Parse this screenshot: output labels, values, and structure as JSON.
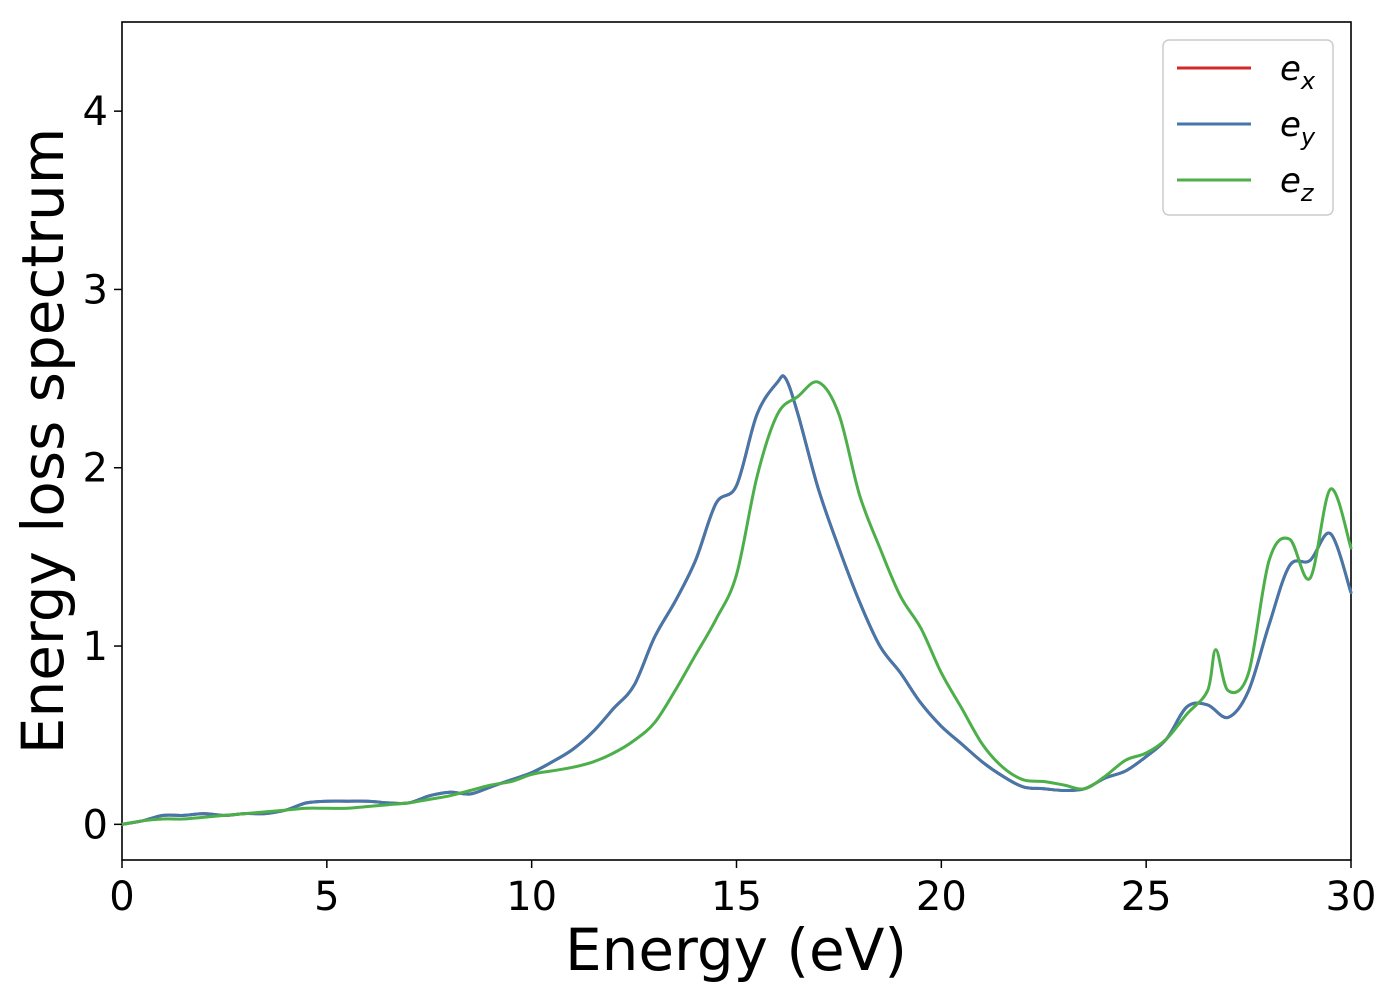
{
  "chart_data": {
    "type": "line",
    "title": "",
    "xlabel": "Energy (eV)",
    "ylabel": "Energy loss spectrum",
    "xlim": [
      0,
      30
    ],
    "ylim": [
      -0.2,
      4.5
    ],
    "xticks": [
      0,
      5,
      10,
      15,
      20,
      25,
      30
    ],
    "yticks": [
      0,
      1,
      2,
      3,
      4
    ],
    "grid": false,
    "legend_position": "top-right",
    "series": [
      {
        "name": "e",
        "name_subscript": "x",
        "color": "#d62728",
        "x": [
          0,
          0.5,
          1,
          1.5,
          2,
          2.5,
          3,
          3.5,
          4,
          4.5,
          5,
          5.5,
          6,
          6.5,
          7,
          7.5,
          8,
          8.5,
          9,
          9.5,
          10,
          10.5,
          11,
          11.5,
          12,
          12.5,
          13,
          13.5,
          14,
          14.5,
          15,
          15.5,
          16,
          16.2,
          16.5,
          17,
          17.5,
          18,
          18.5,
          19,
          19.5,
          20,
          20.5,
          21,
          21.5,
          22,
          22.5,
          23,
          23.5,
          24,
          24.5,
          25,
          25.5,
          26,
          26.5,
          27,
          27.5,
          28,
          28.5,
          29,
          29.5,
          30
        ],
        "y": [
          0.0,
          0.02,
          0.05,
          0.05,
          0.06,
          0.05,
          0.06,
          0.06,
          0.08,
          0.12,
          0.13,
          0.13,
          0.13,
          0.12,
          0.12,
          0.16,
          0.18,
          0.17,
          0.21,
          0.25,
          0.29,
          0.35,
          0.42,
          0.52,
          0.65,
          0.78,
          1.05,
          1.25,
          1.48,
          1.8,
          1.9,
          2.3,
          2.48,
          2.5,
          2.3,
          1.88,
          1.55,
          1.25,
          1.0,
          0.85,
          0.68,
          0.55,
          0.45,
          0.35,
          0.27,
          0.21,
          0.2,
          0.19,
          0.2,
          0.26,
          0.3,
          0.38,
          0.48,
          0.66,
          0.67,
          0.6,
          0.75,
          1.12,
          1.45,
          1.48,
          1.63,
          1.3
        ]
      },
      {
        "name": "e",
        "name_subscript": "y",
        "color": "#4477aa",
        "x": [
          0,
          0.5,
          1,
          1.5,
          2,
          2.5,
          3,
          3.5,
          4,
          4.5,
          5,
          5.5,
          6,
          6.5,
          7,
          7.5,
          8,
          8.5,
          9,
          9.5,
          10,
          10.5,
          11,
          11.5,
          12,
          12.5,
          13,
          13.5,
          14,
          14.5,
          15,
          15.5,
          16,
          16.2,
          16.5,
          17,
          17.5,
          18,
          18.5,
          19,
          19.5,
          20,
          20.5,
          21,
          21.5,
          22,
          22.5,
          23,
          23.5,
          24,
          24.5,
          25,
          25.5,
          26,
          26.5,
          27,
          27.5,
          28,
          28.5,
          29,
          29.5,
          30
        ],
        "y": [
          0.0,
          0.02,
          0.05,
          0.05,
          0.06,
          0.05,
          0.06,
          0.06,
          0.08,
          0.12,
          0.13,
          0.13,
          0.13,
          0.12,
          0.12,
          0.16,
          0.18,
          0.17,
          0.21,
          0.25,
          0.29,
          0.35,
          0.42,
          0.52,
          0.65,
          0.78,
          1.05,
          1.25,
          1.48,
          1.8,
          1.9,
          2.3,
          2.48,
          2.5,
          2.3,
          1.88,
          1.55,
          1.25,
          1.0,
          0.85,
          0.68,
          0.55,
          0.45,
          0.35,
          0.27,
          0.21,
          0.2,
          0.19,
          0.2,
          0.26,
          0.3,
          0.38,
          0.48,
          0.66,
          0.67,
          0.6,
          0.75,
          1.12,
          1.45,
          1.48,
          1.63,
          1.3
        ]
      },
      {
        "name": "e",
        "name_subscript": "z",
        "color": "#4daf4a",
        "x": [
          0,
          0.5,
          1,
          1.5,
          2,
          2.5,
          3,
          3.5,
          4,
          4.5,
          5,
          5.5,
          6,
          6.5,
          7,
          7.5,
          8,
          8.5,
          9,
          9.5,
          10,
          10.5,
          11,
          11.5,
          12,
          12.5,
          13,
          13.5,
          14,
          14.5,
          15,
          15.5,
          16,
          16.5,
          17,
          17.5,
          18,
          18.5,
          19,
          19.5,
          20,
          20.5,
          21,
          21.5,
          22,
          22.5,
          23,
          23.5,
          24,
          24.5,
          25,
          25.5,
          26,
          26.5,
          26.7,
          27,
          27.5,
          28,
          28.5,
          29,
          29.5,
          30
        ],
        "y": [
          0.0,
          0.02,
          0.03,
          0.03,
          0.04,
          0.05,
          0.06,
          0.07,
          0.08,
          0.09,
          0.09,
          0.09,
          0.1,
          0.11,
          0.12,
          0.14,
          0.16,
          0.19,
          0.22,
          0.24,
          0.28,
          0.3,
          0.32,
          0.35,
          0.4,
          0.47,
          0.57,
          0.75,
          0.95,
          1.15,
          1.4,
          1.95,
          2.3,
          2.4,
          2.48,
          2.3,
          1.85,
          1.55,
          1.28,
          1.1,
          0.85,
          0.65,
          0.45,
          0.32,
          0.25,
          0.24,
          0.22,
          0.2,
          0.27,
          0.36,
          0.4,
          0.48,
          0.62,
          0.75,
          0.98,
          0.75,
          0.85,
          1.48,
          1.6,
          1.38,
          1.88,
          1.55
        ]
      }
    ]
  }
}
